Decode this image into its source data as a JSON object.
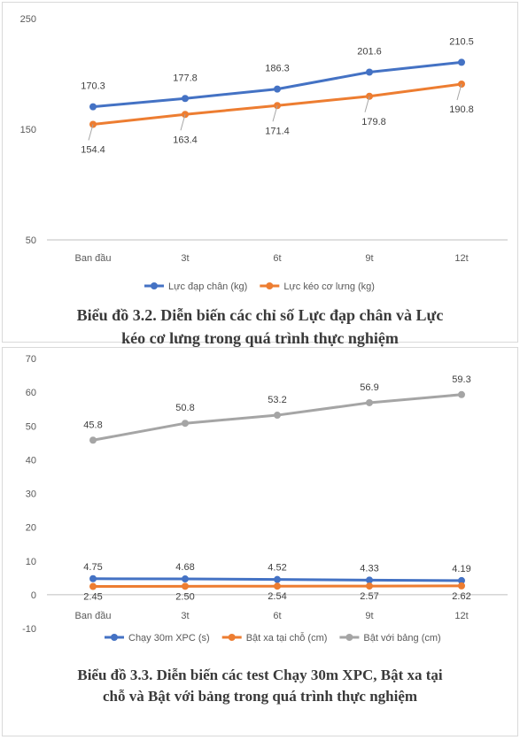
{
  "charts": [
    {
      "type": "line",
      "categories": [
        "Ban đầu",
        "3t",
        "6t",
        "9t",
        "12t"
      ],
      "ylim": [
        50,
        250
      ],
      "yticks": [
        50,
        150,
        250
      ],
      "grid": false,
      "legend": "bottom",
      "series": [
        {
          "name": "Lực đạp chân (kg)",
          "values": [
            170.3,
            177.8,
            186.3,
            201.6,
            210.5
          ],
          "labels": [
            "170.3",
            "177.8",
            "186.3",
            "201.6",
            "210.5"
          ],
          "color": "#4472c4"
        },
        {
          "name": "Lực kéo cơ lưng (kg)",
          "values": [
            154.4,
            163.4,
            171.4,
            179.8,
            190.8
          ],
          "labels": [
            "154.4",
            "163.4",
            "171.4",
            "179.8",
            "190.8"
          ],
          "color": "#ed7d31"
        }
      ],
      "caption": [
        "Biểu đồ 3.2. Diễn biến các chỉ số Lực đạp chân và Lực",
        "kéo cơ lưng trong quá trình thực nghiệm"
      ]
    },
    {
      "type": "line",
      "categories": [
        "Ban đầu",
        "3t",
        "6t",
        "9t",
        "12t"
      ],
      "ylim": [
        -10,
        70
      ],
      "yticks": [
        -10,
        0,
        10,
        20,
        30,
        40,
        50,
        60,
        70
      ],
      "grid": false,
      "legend": "bottom",
      "series": [
        {
          "name": "Chạy 30m XPC (s)",
          "values": [
            4.75,
            4.68,
            4.52,
            4.33,
            4.19
          ],
          "labels": [
            "4.75",
            "4.68",
            "4.52",
            "4.33",
            "4.19"
          ],
          "color": "#4472c4"
        },
        {
          "name": "Bật xa tại chỗ (cm)",
          "values": [
            2.45,
            2.5,
            2.54,
            2.57,
            2.62
          ],
          "labels": [
            "2.45",
            "2.50",
            "2.54",
            "2.57",
            "2.62"
          ],
          "color": "#ed7d31"
        },
        {
          "name": "Bật với bảng (cm)",
          "values": [
            45.8,
            50.8,
            53.2,
            56.9,
            59.3
          ],
          "labels": [
            "45.8",
            "50.8",
            "53.2",
            "56.9",
            "59.3"
          ],
          "color": "#a5a5a5"
        }
      ],
      "caption": [
        "Biểu đồ 3.3. Diễn biến các test Chạy 30m XPC, Bật xa tại",
        "chỗ và Bật với bảng trong quá trình thực nghiệm"
      ]
    }
  ]
}
